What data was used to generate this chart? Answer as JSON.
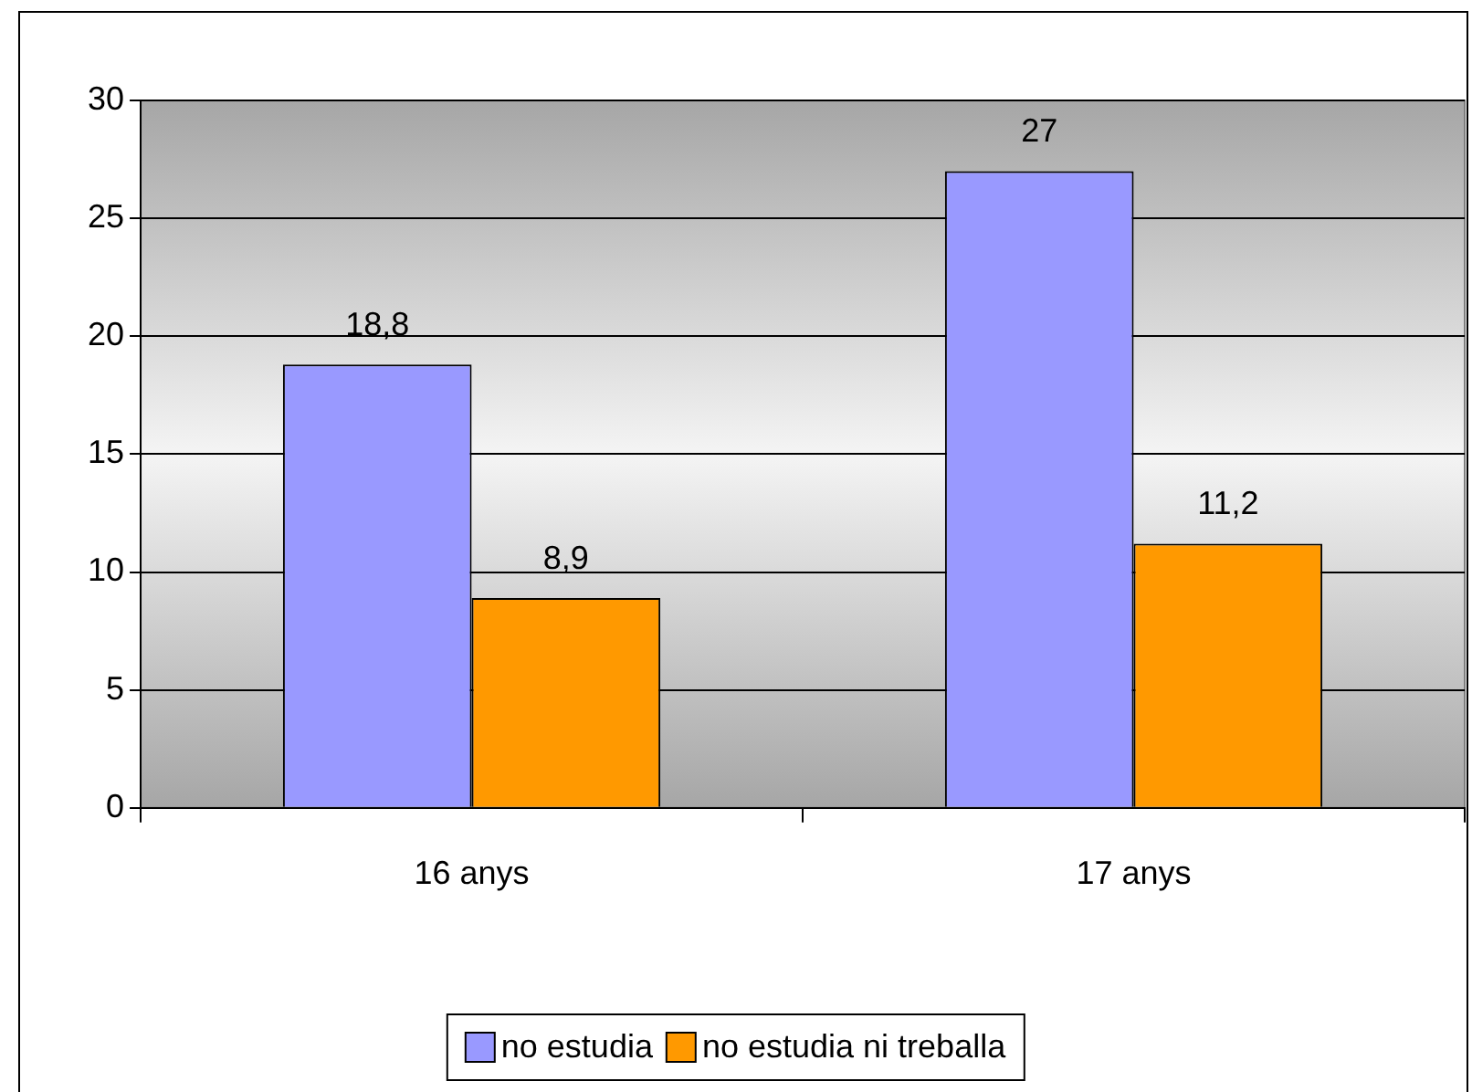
{
  "chart_data": {
    "type": "bar",
    "categories": [
      "16 anys",
      "17 anys"
    ],
    "series": [
      {
        "name": "no estudia",
        "color": "#9999ff",
        "values": [
          18.8,
          27
        ],
        "value_labels": [
          "18,8",
          "27"
        ]
      },
      {
        "name": "no estudia ni treballa",
        "color": "#ff9900",
        "values": [
          8.9,
          11.2
        ],
        "value_labels": [
          "8,9",
          "11,2"
        ]
      }
    ],
    "ylim": [
      0,
      30
    ],
    "yticks": [
      0,
      5,
      10,
      15,
      20,
      25,
      30
    ],
    "grid": "y",
    "legend": "bottom"
  }
}
